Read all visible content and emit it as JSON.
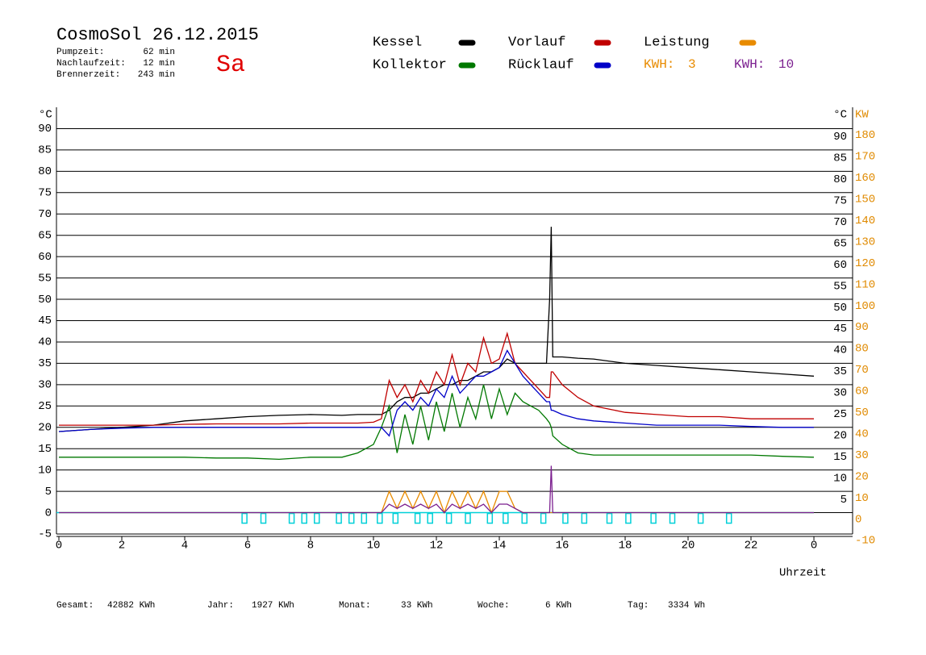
{
  "chart_data": {
    "type": "line",
    "title": "CosmoSol 26.12.2015",
    "day": "Sa",
    "info": [
      {
        "label": "Pumpzeit:",
        "value": "62 min"
      },
      {
        "label": "Nachlaufzeit:",
        "value": "12 min"
      },
      {
        "label": "Brennerzeit:",
        "value": "243 min"
      }
    ],
    "ylabel": "°C",
    "ylabel_right": "°C",
    "y2label": "KW",
    "xlabel": "Uhrzeit",
    "x": [
      0,
      1,
      2,
      3,
      4,
      5,
      6,
      7,
      8,
      9,
      9.5,
      10,
      10.25,
      10.5,
      10.75,
      11,
      11.25,
      11.5,
      11.75,
      12,
      12.25,
      12.5,
      12.75,
      13,
      13.25,
      13.5,
      13.75,
      14,
      14.25,
      14.5,
      14.75,
      15,
      15.25,
      15.5,
      15.6,
      15.65,
      15.7,
      16,
      16.5,
      17,
      18,
      19,
      20,
      21,
      22,
      23,
      24
    ],
    "series": [
      {
        "name": "Kessel",
        "color": "#000000",
        "values": [
          19,
          19.5,
          20,
          20.5,
          21.5,
          22,
          22.5,
          22.8,
          23,
          22.8,
          23,
          23,
          23,
          24,
          26,
          27,
          27,
          28,
          28,
          29,
          30,
          30,
          31,
          31,
          32,
          33,
          33,
          34,
          36,
          35,
          35,
          35,
          35,
          35,
          50,
          67,
          36.5,
          36.5,
          36.2,
          36,
          35,
          34.5,
          34,
          33.5,
          33,
          32.5,
          32
        ]
      },
      {
        "name": "Kollektor",
        "color": "#007800",
        "values": [
          13,
          13,
          13,
          13,
          13,
          12.8,
          12.8,
          12.5,
          13,
          13,
          14,
          16,
          20,
          25,
          14,
          23,
          16,
          25,
          17,
          26,
          19,
          28,
          20,
          27,
          22,
          30,
          22,
          29,
          23,
          28,
          26,
          25,
          24,
          22,
          21,
          20,
          18,
          16,
          14,
          13.5,
          13.5,
          13.5,
          13.5,
          13.5,
          13.5,
          13.2,
          13
        ]
      },
      {
        "name": "Vorlauf",
        "color": "#c00000",
        "values": [
          20.5,
          20.5,
          20.5,
          20.5,
          20.7,
          20.8,
          20.8,
          20.8,
          21,
          21,
          21,
          21.2,
          22,
          31,
          27,
          30,
          26,
          31,
          28,
          33,
          30,
          37,
          30,
          35,
          33,
          41,
          35,
          36,
          42,
          35,
          33,
          31,
          29,
          27,
          27,
          33,
          33,
          30,
          27,
          25,
          23.5,
          23,
          22.5,
          22.5,
          22,
          22,
          22
        ]
      },
      {
        "name": "Rücklauf",
        "color": "#0000c8",
        "values": [
          19,
          19.5,
          19.8,
          20,
          20,
          20,
          20,
          20,
          20,
          20,
          20,
          20,
          20,
          18,
          24,
          26,
          24,
          27,
          25,
          29,
          27,
          32,
          28,
          30,
          32,
          32,
          33,
          34,
          38,
          35,
          32,
          30,
          28,
          26,
          26,
          24,
          24,
          23,
          22,
          21.5,
          21,
          20.5,
          20.5,
          20.5,
          20.2,
          20,
          20
        ]
      },
      {
        "name": "Leistung",
        "color": "#e88b00",
        "axis": "y2",
        "values": [
          0,
          0,
          0,
          0,
          0,
          0,
          0,
          0,
          0,
          0,
          0,
          0,
          0,
          10,
          2,
          10,
          2,
          10,
          2,
          10,
          0,
          10,
          2,
          10,
          2,
          10,
          0,
          10,
          10,
          2,
          0,
          0,
          0,
          0,
          0,
          0,
          0,
          0,
          0,
          0,
          0,
          0,
          0,
          0,
          0,
          0,
          0
        ]
      },
      {
        "color": "#7b1f8f",
        "axis": "y2",
        "values": [
          0,
          0,
          0,
          0,
          0,
          0,
          0,
          0,
          0,
          0,
          0,
          0,
          0,
          4,
          2,
          4,
          2,
          4,
          2,
          4,
          0,
          4,
          2,
          4,
          2,
          4,
          0,
          4,
          4,
          2,
          0,
          0,
          0,
          0,
          0,
          22,
          0,
          0,
          0,
          0,
          0,
          0,
          0,
          0,
          0,
          0,
          0
        ]
      }
    ],
    "pump": {
      "color": "#00d0d8",
      "markers": [
        5.9,
        6.5,
        7.4,
        7.8,
        8.2,
        8.9,
        9.3,
        9.7,
        10.2,
        10.7,
        11.4,
        11.8,
        12.4,
        13.0,
        13.7,
        14.2,
        14.8,
        15.4,
        16.1,
        16.7,
        17.5,
        18.1,
        18.9,
        19.5,
        20.4,
        21.3
      ]
    },
    "kwh": [
      {
        "label": "KWH:",
        "value": 3,
        "color": "#e88b00"
      },
      {
        "label": "KWH:",
        "value": 10,
        "color": "#7b1f8f"
      }
    ],
    "xlim": [
      0,
      25.23
    ],
    "xticks": [
      0,
      2,
      4,
      6,
      8,
      10,
      12,
      14,
      16,
      18,
      20,
      22,
      {
        "value": 24,
        "label": "0"
      }
    ],
    "ylim": [
      -5,
      95
    ],
    "yticks": [
      -5,
      0,
      5,
      10,
      15,
      20,
      25,
      30,
      35,
      40,
      45,
      50,
      55,
      60,
      65,
      70,
      75,
      80,
      85,
      90
    ],
    "yticks_right": [
      5,
      10,
      15,
      20,
      25,
      30,
      35,
      40,
      45,
      50,
      55,
      60,
      65,
      70,
      75,
      80,
      85,
      90
    ],
    "y2lim": [
      -10,
      190
    ],
    "y2ticks": [
      -10,
      0,
      10,
      20,
      30,
      40,
      50,
      60,
      70,
      80,
      90,
      100,
      110,
      120,
      130,
      140,
      150,
      160,
      170,
      180
    ],
    "y2color": "#e08a00",
    "grid": true,
    "footer": [
      {
        "label": "Gesamt:",
        "value": "42882 KWh"
      },
      {
        "label": "Jahr:",
        "value": "1927 KWh"
      },
      {
        "label": "Monat:",
        "value": "33 KWh"
      },
      {
        "label": "Woche:",
        "value": "6 KWh"
      },
      {
        "label": "Tag:",
        "value": "3334 Wh"
      }
    ]
  }
}
